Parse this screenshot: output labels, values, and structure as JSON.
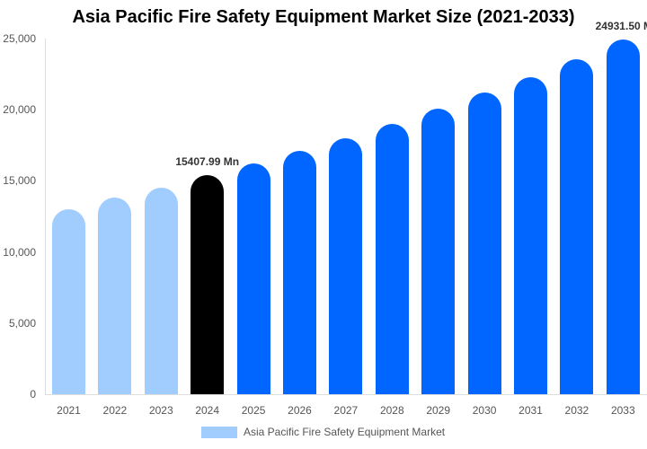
{
  "chart_data": {
    "type": "bar",
    "title": "Asia Pacific Fire Safety Equipment Market Size (2021-2033)",
    "xlabel": "",
    "ylabel": "",
    "ylim": [
      0,
      25000
    ],
    "yticks": [
      "0",
      "5,000",
      "10,000",
      "15,000",
      "20,000",
      "25,000"
    ],
    "categories": [
      "2021",
      "2022",
      "2023",
      "2024",
      "2025",
      "2026",
      "2027",
      "2028",
      "2029",
      "2030",
      "2031",
      "2032",
      "2033"
    ],
    "series": [
      {
        "name": "Asia Pacific Fire Safety Equipment Market",
        "values": [
          13000,
          13800,
          14550,
          15407.99,
          16200,
          17080,
          18000,
          19000,
          20100,
          21200,
          22300,
          23550,
          24931.5
        ]
      }
    ],
    "bar_colors": [
      "#a0cdfd",
      "#a0cdfd",
      "#a0cdfd",
      "#000000",
      "#0066ff",
      "#0066ff",
      "#0066ff",
      "#0066ff",
      "#0066ff",
      "#0066ff",
      "#0066ff",
      "#0066ff",
      "#0066ff"
    ],
    "annotations": [
      {
        "category": "2024",
        "text": "15407.99 Mn"
      },
      {
        "category": "2033",
        "text": "24931.50 M"
      }
    ],
    "legend_position": "bottom",
    "grid": false
  },
  "legend": {
    "label": "Asia Pacific Fire Safety Equipment Market",
    "color": "#a0cdfd"
  }
}
